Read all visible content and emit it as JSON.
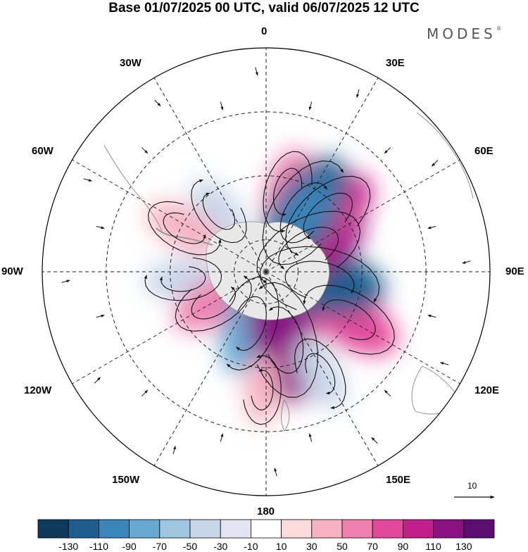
{
  "title": "Base 01/07/2025 00 UTC, valid 06/07/2025 12 UTC",
  "brand": {
    "name": "MODES",
    "mark": "®"
  },
  "longitude_labels": {
    "lon_0": "0",
    "lon_30e": "30E",
    "lon_60e": "60E",
    "lon_90e": "90E",
    "lon_120e": "120E",
    "lon_150e": "150E",
    "lon_180": "180",
    "lon_150w": "150W",
    "lon_120w": "120W",
    "lon_90w": "90W",
    "lon_60w": "60W",
    "lon_30w": "30W"
  },
  "vector_reference": {
    "value": "10"
  },
  "colorbar": {
    "colors": [
      "#0e3a5b",
      "#1e5e8f",
      "#3a86bb",
      "#67a9d1",
      "#9fc5e0",
      "#c8d6ea",
      "#e3e5f2",
      "#ffffff",
      "#fbdada",
      "#f6b2c2",
      "#ef7fae",
      "#e2489c",
      "#c21f8c",
      "#8b1183",
      "#5a0f6e"
    ],
    "tick_labels": [
      "-130",
      "-110",
      "-90",
      "-70",
      "-50",
      "-30",
      "-10",
      "10",
      "30",
      "50",
      "70",
      "90",
      "110",
      "130"
    ]
  },
  "anomaly_blobs": [
    {
      "lon": 15,
      "colat": 26,
      "value": 55
    },
    {
      "lon": -38,
      "colat": 24,
      "value": -38
    },
    {
      "lon": -62,
      "colat": 29,
      "value": 48
    },
    {
      "lon": -95,
      "colat": 26,
      "value": -45
    },
    {
      "lon": -120,
      "colat": 19,
      "value": 58
    },
    {
      "lon": -162,
      "colat": 17,
      "value": -82
    },
    {
      "lon": 166,
      "colat": 22,
      "value": 122
    },
    {
      "lon": 120,
      "colat": 30,
      "value": 88
    },
    {
      "lon": 100,
      "colat": 17,
      "value": -128
    },
    {
      "lon": 62,
      "colat": 15,
      "value": 112
    },
    {
      "lon": 48,
      "colat": 26,
      "value": 92
    },
    {
      "lon": 33,
      "colat": 22,
      "value": -120
    },
    {
      "lon": 152,
      "colat": 36,
      "value": -42
    },
    {
      "lon": -178,
      "colat": 37,
      "value": 30
    }
  ]
}
